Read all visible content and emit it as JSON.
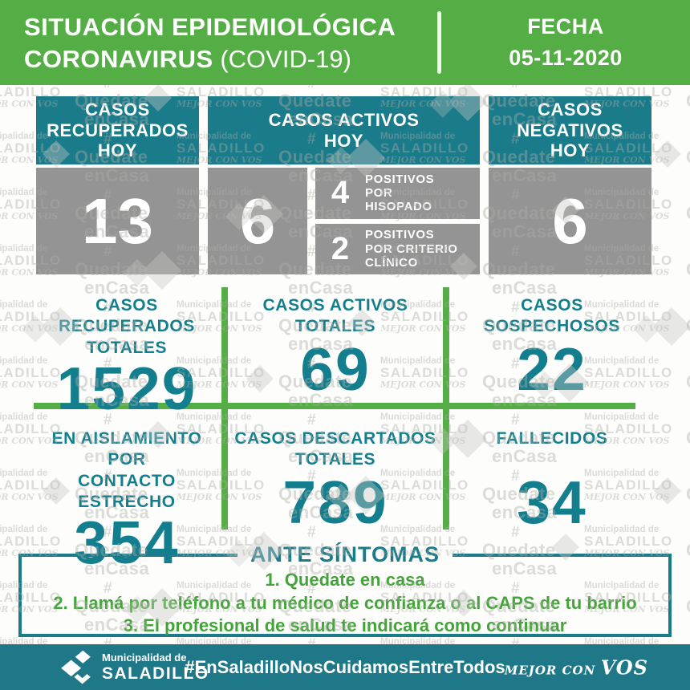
{
  "header": {
    "title_line1": "SITUACIÓN EPIDEMIOLÓGICA",
    "title_line2_bold": "CORONAVIRUS",
    "title_line2_light": " (COVID-19)",
    "fecha_label": "FECHA",
    "fecha_value": "05-11-2020"
  },
  "today": {
    "recovered": {
      "label": "CASOS\nRECUPERADOS\nHOY",
      "value": "13"
    },
    "active": {
      "label": "CASOS ACTIVOS\nHOY",
      "value": "6",
      "breakdown": [
        {
          "value": "4",
          "label": "POSITIVOS\nPOR\nHISOPADO"
        },
        {
          "value": "2",
          "label": "POSITIVOS\nPOR CRITERIO\nCLÍNICO"
        }
      ]
    },
    "negative": {
      "label": "CASOS\nNEGATIVOS\nHOY",
      "value": "6"
    }
  },
  "totals": [
    {
      "label": "CASOS RECUPERADOS\nTOTALES",
      "value": "1529"
    },
    {
      "label": "CASOS ACTIVOS\nTOTALES",
      "value": "69"
    },
    {
      "label": "CASOS\nSOSPECHOSOS",
      "value": "22"
    },
    {
      "label": "EN AISLAMIENTO POR\nCONTACTO ESTRECHO",
      "value": "354"
    },
    {
      "label": "CASOS DESCARTADOS\nTOTALES",
      "value": "789"
    },
    {
      "label": "FALLECIDOS",
      "value": "34"
    }
  ],
  "symptoms": {
    "title": "ANTE SÍNTOMAS",
    "items": [
      "1. Quedate en casa",
      "2. Llamá por teléfono a tu médico de confianza o al CAPS de tu barrio",
      "3. El profesional de salud te indicará como continuar"
    ]
  },
  "footer": {
    "org_small": "Municipalidad de",
    "org_big": "SALADILLO",
    "hashtag": "#EnSaladilloNosCuidamosEntreTodos",
    "slogan_small": "MEJOR CON ",
    "slogan_big": "VOS"
  },
  "watermark": {
    "org_small": "Municipalidad de",
    "org_big": "SALADILLO",
    "slogan": "MEJOR CON VOS",
    "hash": "#",
    "stay_top": "Quedate",
    "stay_bottom": "enCasa"
  },
  "colors": {
    "green": "#55AD45",
    "teal_box": "#1A7B8A",
    "teal_text": "#137F8E",
    "gray_box": "#949494",
    "list_green": "#43A539"
  }
}
